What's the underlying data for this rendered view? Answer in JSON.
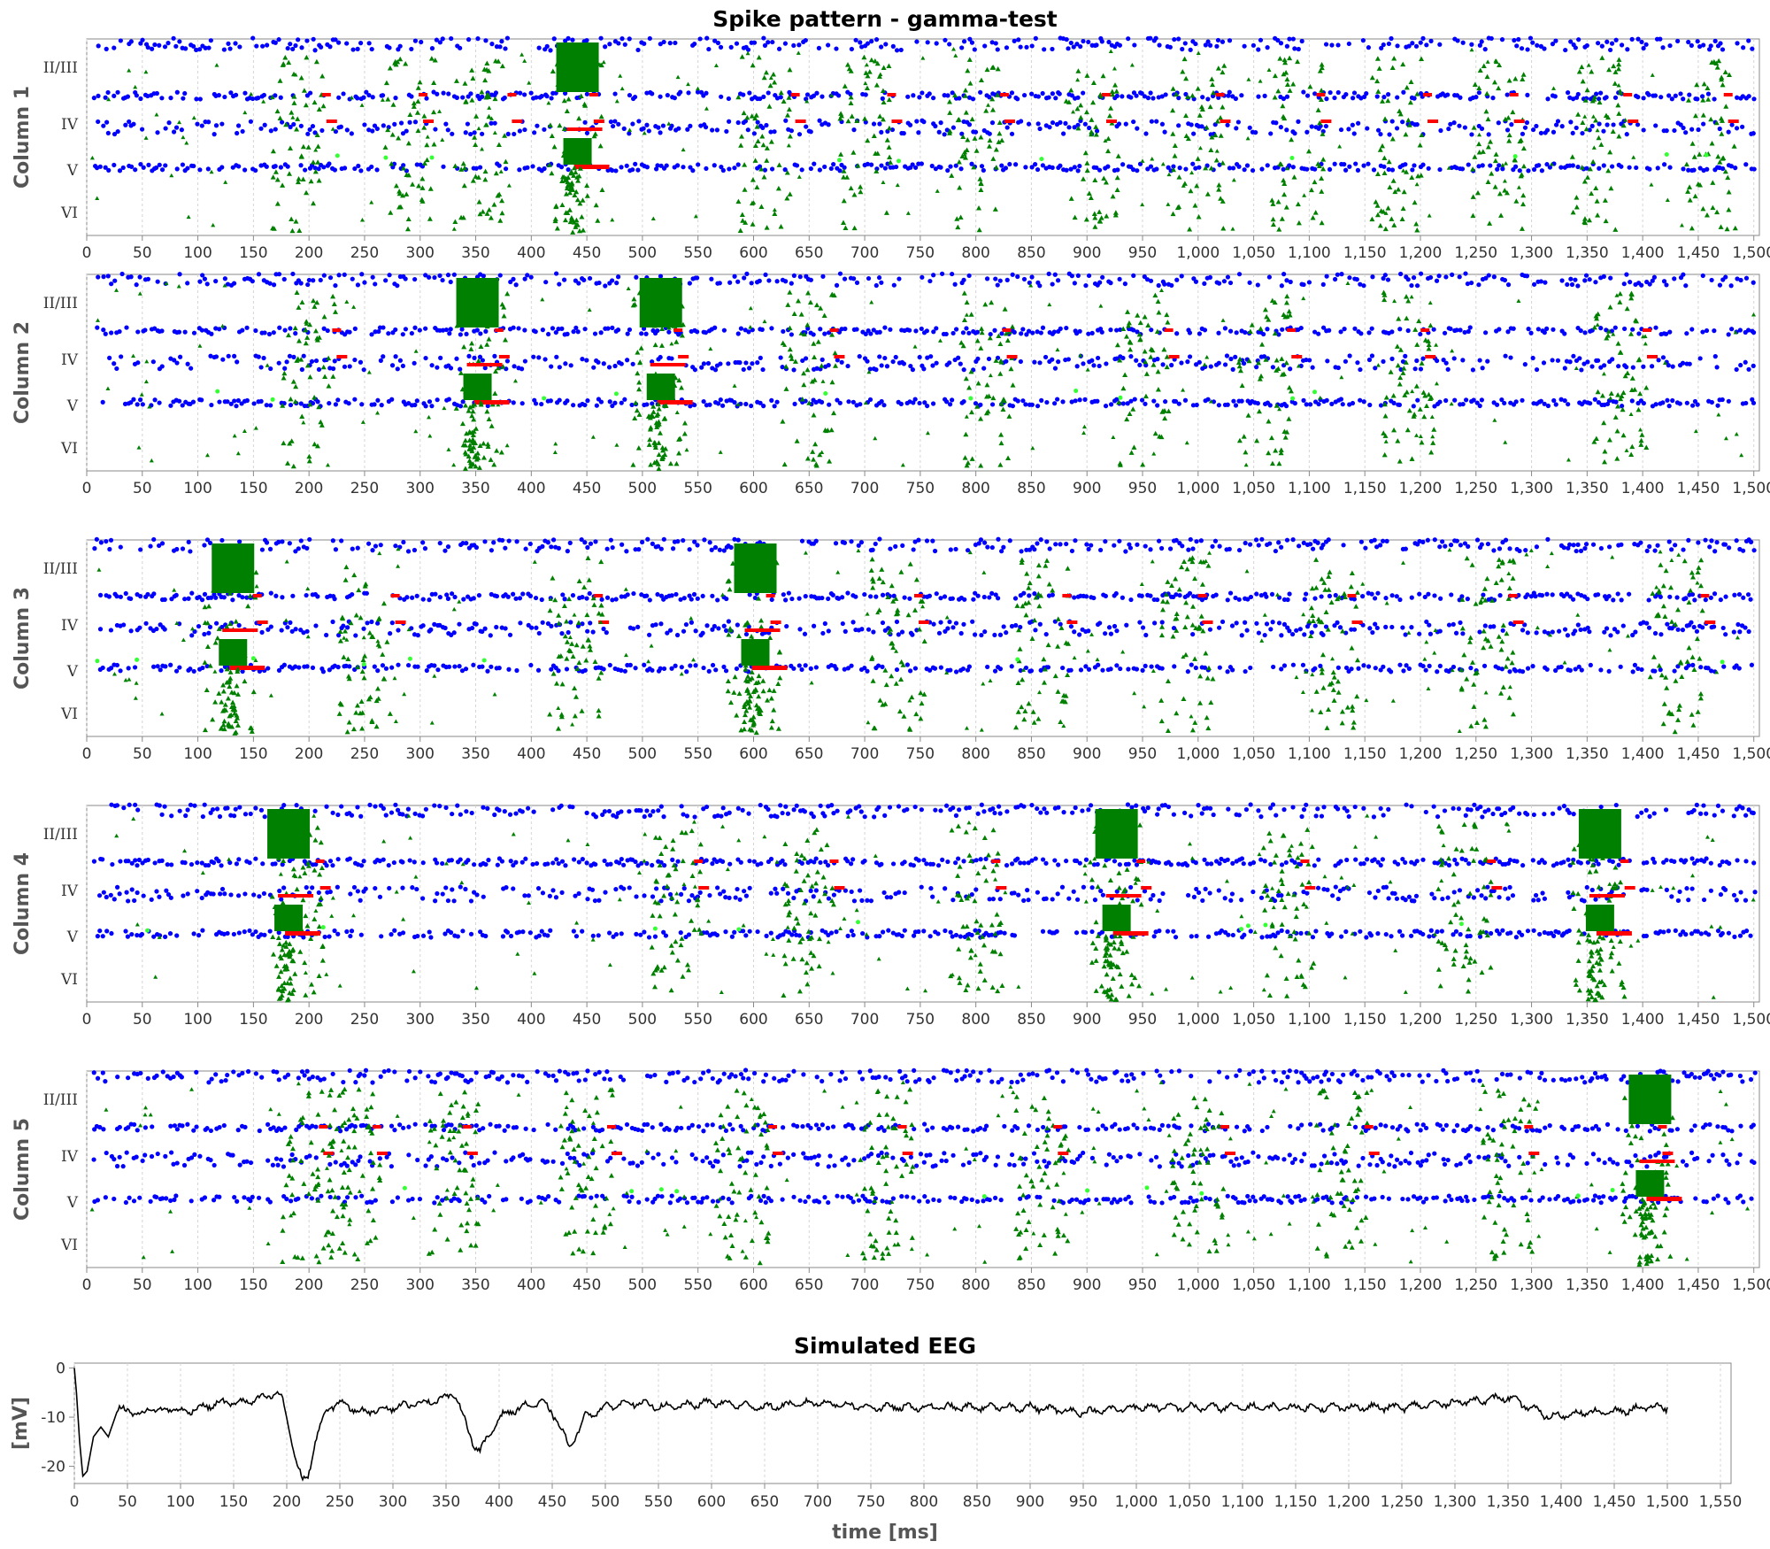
{
  "chart_data": [
    {
      "type": "scatter",
      "title": "Spike pattern - gamma-test",
      "x_ticks": [
        "0",
        "50",
        "100",
        "150",
        "200",
        "250",
        "300",
        "350",
        "400",
        "450",
        "500",
        "550",
        "600",
        "650",
        "700",
        "750",
        "800",
        "850",
        "900",
        "950",
        "1,000",
        "1,050",
        "1,100",
        "1,150",
        "1,200",
        "1,250",
        "1,300",
        "1,350",
        "1,400",
        "1,450",
        "1,500"
      ],
      "xlim": [
        0,
        1505
      ],
      "layers": [
        "II/III",
        "IV",
        "V",
        "VI"
      ],
      "marker_colors": {
        "excitatory": "#0000ff",
        "inhibitory": "#008000",
        "bursting": "#ff0000",
        "other": "#33ff33"
      },
      "grid": true,
      "panels": [
        {
          "label": "Column 1",
          "bursts": [
            440
          ],
          "volleys": [
            190,
            290,
            355,
            440,
            610,
            700,
            800,
            905,
            1000,
            1090,
            1180,
            1270,
            1360,
            1460
          ]
        },
        {
          "label": "Column 2",
          "bursts": [
            350,
            515
          ],
          "volleys": [
            200,
            355,
            515,
            650,
            810,
            950,
            1060,
            1190,
            1380
          ]
        },
        {
          "label": "Column 3",
          "bursts": [
            130,
            600
          ],
          "volleys": [
            130,
            250,
            440,
            600,
            730,
            860,
            990,
            1120,
            1260,
            1430
          ]
        },
        {
          "label": "Column 4",
          "bursts": [
            180,
            925,
            1360
          ],
          "volleys": [
            190,
            530,
            650,
            800,
            925,
            1080,
            1240,
            1360
          ]
        },
        {
          "label": "Column 5",
          "bursts": [
            1405
          ],
          "volleys": [
            200,
            240,
            330,
            450,
            590,
            720,
            860,
            1000,
            1130,
            1280,
            1405
          ]
        }
      ]
    },
    {
      "type": "line",
      "title": "Simulated EEG",
      "xlabel": "time [ms]",
      "ylabel": "[mV]",
      "xlim": [
        0,
        1560
      ],
      "ylim": [
        -23.5,
        1
      ],
      "x_ticks": [
        "0",
        "50",
        "100",
        "150",
        "200",
        "250",
        "300",
        "350",
        "400",
        "450",
        "500",
        "550",
        "600",
        "650",
        "700",
        "750",
        "800",
        "850",
        "900",
        "950",
        "1,000",
        "1,050",
        "1,100",
        "1,150",
        "1,200",
        "1,250",
        "1,300",
        "1,350",
        "1,400",
        "1,450",
        "1,500",
        "1,550"
      ],
      "y_ticks": [
        0,
        -10,
        -20
      ],
      "x": [
        0,
        2,
        5,
        8,
        12,
        18,
        25,
        32,
        40,
        50,
        60,
        70,
        80,
        90,
        100,
        120,
        140,
        160,
        180,
        190,
        195,
        200,
        210,
        215,
        220,
        228,
        235,
        240,
        250,
        270,
        300,
        330,
        350,
        357,
        365,
        375,
        382,
        390,
        400,
        420,
        440,
        450,
        460,
        465,
        470,
        480,
        500,
        520,
        560,
        600,
        650,
        700,
        750,
        800,
        850,
        900,
        950,
        1000,
        1050,
        1100,
        1150,
        1200,
        1250,
        1300,
        1350,
        1370,
        1390,
        1420,
        1450,
        1480,
        1500
      ],
      "y": [
        0,
        -5,
        -15,
        -22,
        -21,
        -14,
        -12,
        -14,
        -9,
        -8,
        -10,
        -8,
        -9,
        -8,
        -9,
        -8,
        -7,
        -7,
        -6,
        -5,
        -6,
        -10,
        -20,
        -23,
        -22,
        -14,
        -10,
        -8,
        -7,
        -9,
        -8,
        -7,
        -6,
        -5,
        -9,
        -15,
        -17,
        -14,
        -10,
        -8,
        -7,
        -9,
        -13,
        -16,
        -15,
        -10,
        -8,
        -7,
        -8,
        -7,
        -8,
        -7,
        -8,
        -8,
        -8,
        -8,
        -9,
        -8,
        -8,
        -8,
        -8,
        -8,
        -8,
        -7,
        -6,
        -8,
        -10,
        -9,
        -9,
        -8,
        -8
      ]
    }
  ]
}
